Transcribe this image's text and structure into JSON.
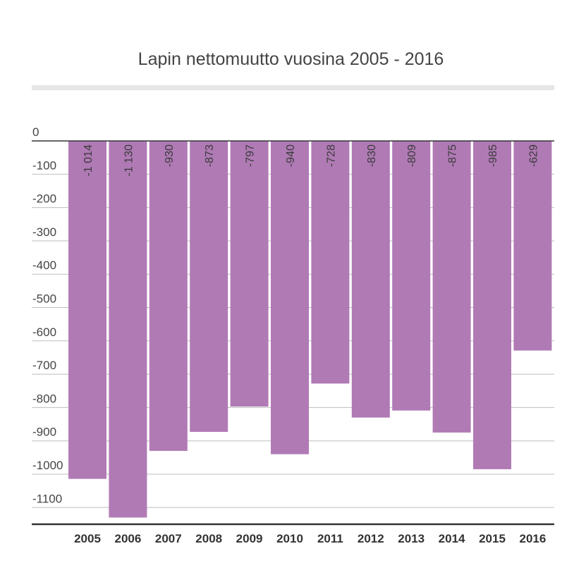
{
  "chart_data": {
    "type": "bar",
    "title": "Lapin nettomuutto vuosina 2005 - 2016",
    "xlabel": "",
    "ylabel": "",
    "categories": [
      "2005",
      "2006",
      "2007",
      "2008",
      "2009",
      "2010",
      "2011",
      "2012",
      "2013",
      "2014",
      "2015",
      "2016"
    ],
    "values": [
      -1014,
      -1130,
      -930,
      -873,
      -797,
      -940,
      -728,
      -830,
      -809,
      -875,
      -985,
      -629
    ],
    "value_labels": [
      "-1 014",
      "-1 130",
      "-930",
      "-873",
      "-797",
      "-940",
      "-728",
      "-830",
      "-809",
      "-875",
      "-985",
      "-629"
    ],
    "ylim": [
      -1150,
      0
    ],
    "yticks": [
      0,
      -100,
      -200,
      -300,
      -400,
      -500,
      -600,
      -700,
      -800,
      -900,
      -1000,
      -1100
    ],
    "ytick_labels": [
      "0",
      "-100",
      "-200",
      "-300",
      "-400",
      "-500",
      "-600",
      "-700",
      "-800",
      "-900",
      "-1000",
      "-1100"
    ],
    "grid": true,
    "legend": "none",
    "colors": {
      "bar": "#b07ab5",
      "grid": "#bdbdbd",
      "axis": "#333333",
      "band": "#e6e6e6"
    }
  }
}
